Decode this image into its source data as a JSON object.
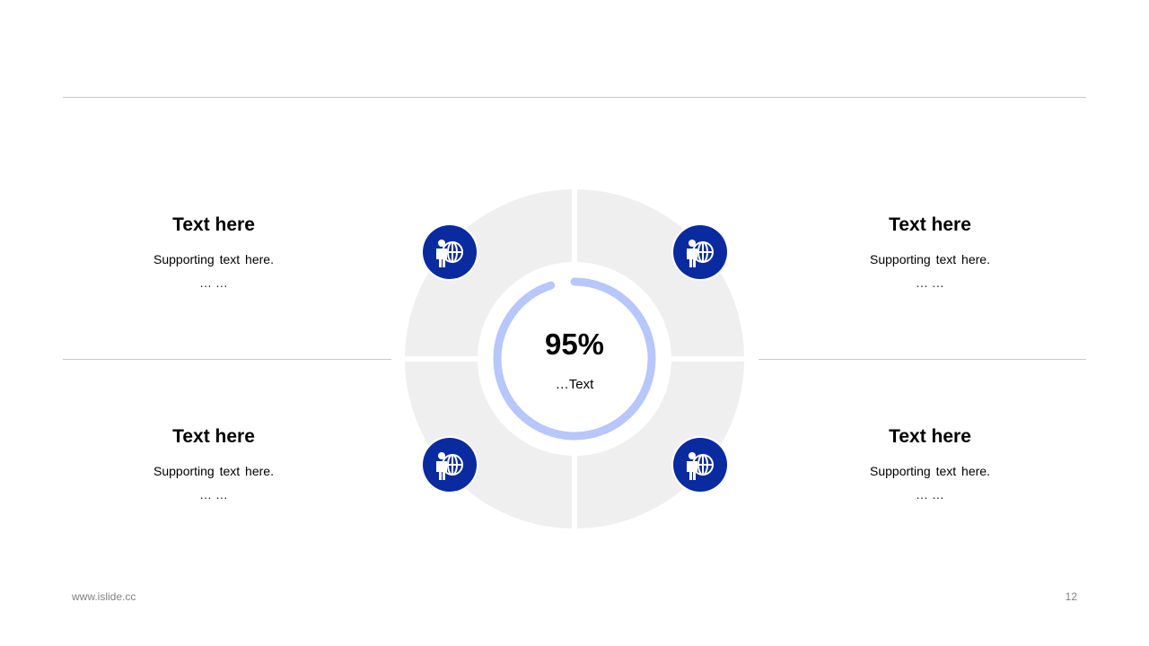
{
  "blocks": [
    {
      "title": "Text here",
      "sub": "Supporting text here.",
      "dots": "… …"
    },
    {
      "title": "Text here",
      "sub": "Supporting text here.",
      "dots": "… …"
    },
    {
      "title": "Text here",
      "sub": "Supporting text here.",
      "dots": "… …"
    },
    {
      "title": "Text here",
      "sub": "Supporting text here.",
      "dots": "… …"
    }
  ],
  "center": {
    "percent_label": "95%",
    "text": "…Text",
    "progress": 0.95
  },
  "footer": {
    "url": "www.islide.cc",
    "page": "12"
  },
  "colors": {
    "accent": "#0a2aa0",
    "ring_progress": "#b7c6fb",
    "segment": "#efefef",
    "line": "#c8c8c8"
  },
  "icons": [
    "person-globe-icon",
    "person-globe-icon",
    "person-globe-icon",
    "person-globe-icon"
  ]
}
